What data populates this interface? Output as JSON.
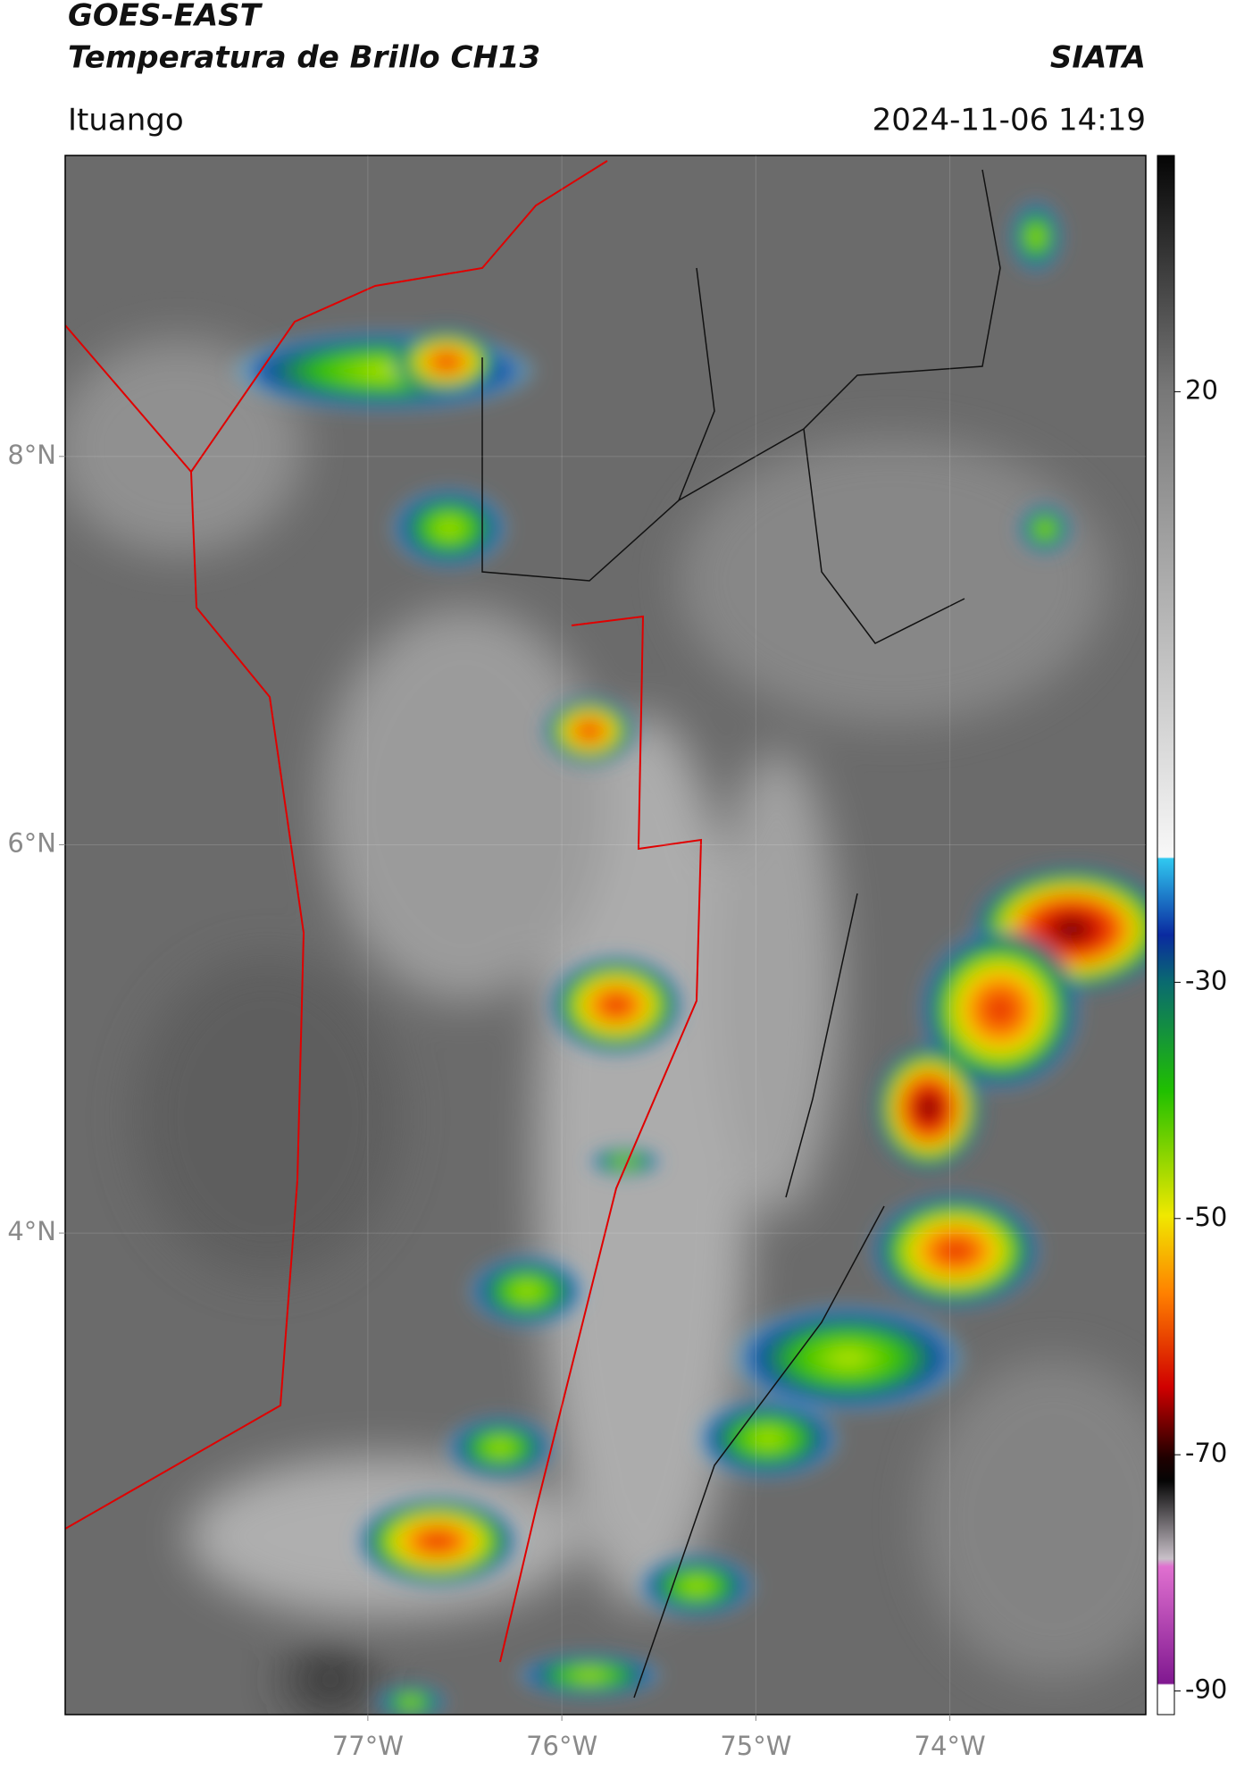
{
  "map": {
    "title": "GOES-EAST",
    "subtitle": "Temperatura de Brillo CH13",
    "source": "SIATA",
    "location": "Ituango",
    "datetime": "2024-11-06 14:19",
    "xlim": [
      -78.56,
      -72.99
    ],
    "ylim": [
      1.52,
      9.55
    ],
    "xticks": [
      {
        "value": -77,
        "label": "77°W"
      },
      {
        "value": -76,
        "label": "76°W"
      },
      {
        "value": -75,
        "label": "75°W"
      },
      {
        "value": -74,
        "label": "74°W"
      }
    ],
    "yticks": [
      {
        "value": 8,
        "label": "8°N"
      },
      {
        "value": 6,
        "label": "6°N"
      },
      {
        "value": 4,
        "label": "4°N"
      }
    ],
    "grid": true,
    "colorbar": {
      "lim": [
        -92,
        40
      ],
      "ticks": [
        20,
        -30,
        -50,
        -70,
        -90
      ]
    }
  }
}
